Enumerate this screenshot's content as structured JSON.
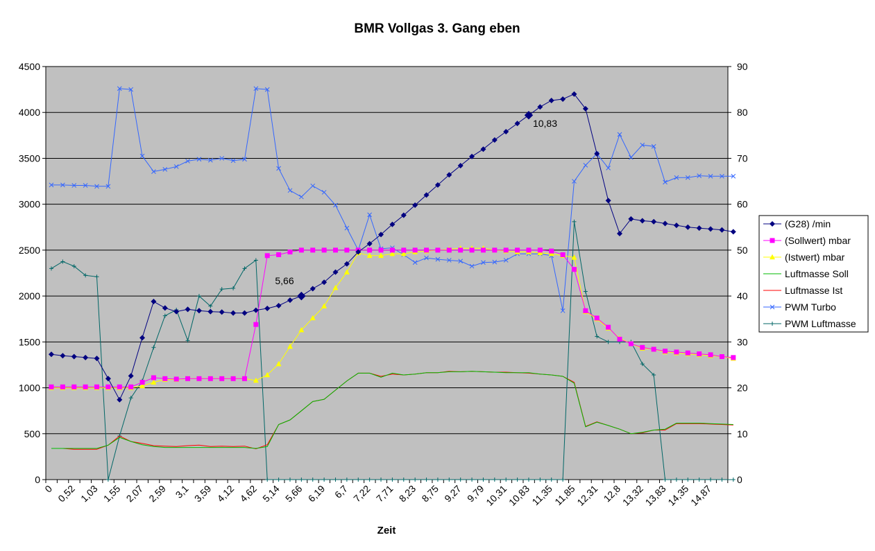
{
  "chart_data": {
    "type": "line",
    "title": "BMR Vollgas 3. Gang eben",
    "xlabel": "Zeit",
    "ylabel": "",
    "ylim": [
      0,
      4500
    ],
    "y2lim": [
      0,
      90
    ],
    "yticks": [
      0,
      500,
      1000,
      1500,
      2000,
      2500,
      3000,
      3500,
      4000,
      4500
    ],
    "y2ticks": [
      0,
      10,
      20,
      30,
      40,
      50,
      60,
      70,
      80,
      90
    ],
    "grid": true,
    "legend_position": "right",
    "categories": [
      "0",
      "0,26",
      "0,52",
      "0,78",
      "1,03",
      "1,29",
      "1,55",
      "1,81",
      "2,07",
      "2,33",
      "2,59",
      "2,85",
      "3,1",
      "3,35",
      "3,59",
      "3,86",
      "4,12",
      "4,37",
      "4,62",
      "4,88",
      "5,14",
      "5,40",
      "5,66",
      "5,93",
      "6,19",
      "6,45",
      "6,7",
      "6,96",
      "7,22",
      "7,47",
      "7,71",
      "7,97",
      "8,23",
      "8,49",
      "8,75",
      "9,01",
      "9,27",
      "9,53",
      "9,79",
      "10,05",
      "10,31",
      "10,57",
      "10,83",
      "11,09",
      "11,35",
      "11,60",
      "11,85",
      "12,08",
      "12,31",
      "12,56",
      "12,8",
      "13,06",
      "13,32",
      "13,58",
      "13,83",
      "14,09",
      "14,35",
      "14,61",
      "14,87",
      "15,13",
      "15,39"
    ],
    "x_tick_labels": [
      "0",
      "0,52",
      "1,03",
      "1,55",
      "2,07",
      "2,59",
      "3,1",
      "3,59",
      "4,12",
      "4,62",
      "5,14",
      "5,66",
      "6,19",
      "6,7",
      "7,22",
      "7,71",
      "8,23",
      "8,75",
      "9,27",
      "9,79",
      "10,31",
      "10,83",
      "11,35",
      "11,85",
      "12,31",
      "12,8",
      "13,32",
      "13,83",
      "14,35",
      "14,87"
    ],
    "series": [
      {
        "name": "(G28)  /min",
        "axis": "left",
        "color": "#000080",
        "marker": "diamond",
        "values": [
          1365,
          1350,
          1340,
          1330,
          1320,
          1100,
          870,
          1130,
          1545,
          1940,
          1870,
          1830,
          1855,
          1840,
          1830,
          1825,
          1815,
          1815,
          1845,
          1865,
          1895,
          1955,
          2000,
          2080,
          2150,
          2260,
          2350,
          2480,
          2570,
          2670,
          2780,
          2880,
          2990,
          3100,
          3210,
          3320,
          3420,
          3520,
          3600,
          3700,
          3790,
          3880,
          3970,
          4060,
          4130,
          4145,
          4200,
          4040,
          3550,
          3040,
          2680,
          2840,
          2820,
          2810,
          2790,
          2770,
          2750,
          2740,
          2730,
          2720,
          2700
        ]
      },
      {
        "name": "(Sollwert)  mbar",
        "axis": "left",
        "color": "#ff00ff",
        "marker": "square",
        "values": [
          1010,
          1010,
          1010,
          1010,
          1010,
          1010,
          1010,
          1010,
          1060,
          1110,
          1100,
          1095,
          1100,
          1100,
          1100,
          1100,
          1100,
          1100,
          1690,
          2440,
          2450,
          2480,
          2500,
          2500,
          2500,
          2500,
          2500,
          2500,
          2500,
          2500,
          2500,
          2500,
          2500,
          2500,
          2500,
          2500,
          2500,
          2500,
          2500,
          2500,
          2500,
          2500,
          2500,
          2500,
          2490,
          2450,
          2290,
          1840,
          1760,
          1660,
          1530,
          1480,
          1440,
          1420,
          1400,
          1390,
          1380,
          1370,
          1360,
          1340,
          1330
        ]
      },
      {
        "name": "(Istwert)  mbar",
        "axis": "left",
        "color": "#ffff00",
        "marker": "triangle",
        "values": [
          1000,
          1000,
          1000,
          1000,
          1000,
          1000,
          1000,
          1000,
          1020,
          1060,
          1090,
          1090,
          1100,
          1100,
          1100,
          1100,
          1100,
          1100,
          1080,
          1140,
          1260,
          1450,
          1630,
          1760,
          1890,
          2090,
          2260,
          2470,
          2440,
          2440,
          2460,
          2460,
          2480,
          2490,
          2500,
          2510,
          2520,
          2520,
          2520,
          2500,
          2490,
          2480,
          2480,
          2470,
          2460,
          2440,
          2420,
          1830,
          1750,
          1650,
          1540,
          1480,
          1430,
          1420,
          1390,
          1380,
          1370,
          1360,
          1350,
          1340,
          1320
        ]
      },
      {
        "name": "Luftmasse Soll",
        "axis": "right",
        "color": "#00bb00",
        "marker": "none",
        "values": [
          6.8,
          6.8,
          6.8,
          6.8,
          6.8,
          7.5,
          9.2,
          8.3,
          7.6,
          7.2,
          7.0,
          7.0,
          7.0,
          7.0,
          7.0,
          7.0,
          7.0,
          7.0,
          6.8,
          7.2,
          12,
          13,
          15,
          17,
          17.5,
          19.5,
          21.5,
          23.2,
          23.2,
          22.3,
          23.2,
          22.8,
          23,
          23.3,
          23.3,
          23.5,
          23.5,
          23.6,
          23.5,
          23.4,
          23.3,
          23.3,
          23.3,
          23,
          22.8,
          22.5,
          21,
          11.5,
          12.5,
          11.8,
          11,
          10,
          10.3,
          10.8,
          11,
          12.3,
          12.3,
          12.3,
          12.2,
          12.1,
          12
        ]
      },
      {
        "name": "Luftmasse Ist",
        "axis": "right",
        "color": "#ff0000",
        "marker": "none",
        "values": [
          6.8,
          6.8,
          6.6,
          6.6,
          6.6,
          7.5,
          9.5,
          8.3,
          7.9,
          7.4,
          7.3,
          7.2,
          7.4,
          7.5,
          7.2,
          7.3,
          7.2,
          7.3,
          6.7,
          7.6,
          12,
          13,
          15,
          17,
          17.5,
          19.5,
          21.5,
          23.2,
          23.2,
          22.5,
          23,
          22.8,
          23,
          23.3,
          23.3,
          23.6,
          23.5,
          23.6,
          23.5,
          23.4,
          23.4,
          23.3,
          23.2,
          23,
          22.8,
          22.5,
          21.2,
          11.6,
          12.6,
          11.8,
          11,
          10,
          10.2,
          10.8,
          10.8,
          12.2,
          12.2,
          12.2,
          12.1,
          12,
          11.9
        ]
      },
      {
        "name": "PWM Turbo",
        "axis": "right",
        "color": "#3366ff",
        "marker": "x",
        "values": [
          64.2,
          64.2,
          64.1,
          64.1,
          63.9,
          63.9,
          85.2,
          85,
          70.5,
          67.1,
          67.6,
          68.2,
          69.4,
          69.8,
          69.6,
          70,
          69.5,
          69.8,
          85.2,
          85,
          67.8,
          63,
          61.6,
          64,
          62.6,
          59.8,
          54.8,
          50,
          57.7,
          50.3,
          50.5,
          49,
          47.3,
          48.3,
          48,
          47.8,
          47.6,
          46.5,
          47.3,
          47.4,
          47.8,
          49.2,
          49.2,
          49.2,
          48.8,
          36.8,
          65,
          68.5,
          71,
          67.9,
          75.2,
          70.2,
          72.9,
          72.6,
          64.8,
          65.8,
          65.8,
          66.2,
          66.1,
          66.1,
          66.1
        ]
      },
      {
        "name": "PWM Luftmasse",
        "axis": "right",
        "color": "#006666",
        "marker": "plus",
        "values": [
          46,
          47.5,
          46.5,
          44.5,
          44.2,
          0,
          9.5,
          17.8,
          21.5,
          28.8,
          35.7,
          37,
          30.3,
          40,
          37.8,
          41.5,
          41.7,
          46,
          47.8,
          0,
          0,
          0,
          0,
          0,
          0,
          0,
          0,
          0,
          0,
          0,
          0,
          0,
          0,
          0,
          0,
          0,
          0,
          0,
          0,
          0,
          0,
          0,
          0,
          0,
          0,
          0,
          56.2,
          41,
          31.2,
          30,
          30,
          30,
          25.2,
          22.8,
          0,
          0,
          0,
          0,
          0,
          0,
          0
        ]
      }
    ],
    "annotations": [
      {
        "text": "5,66",
        "series": "(G28)  /min",
        "category": "5,66"
      },
      {
        "text": "10,83",
        "series": "(G28)  /min",
        "category": "10,83"
      }
    ]
  }
}
